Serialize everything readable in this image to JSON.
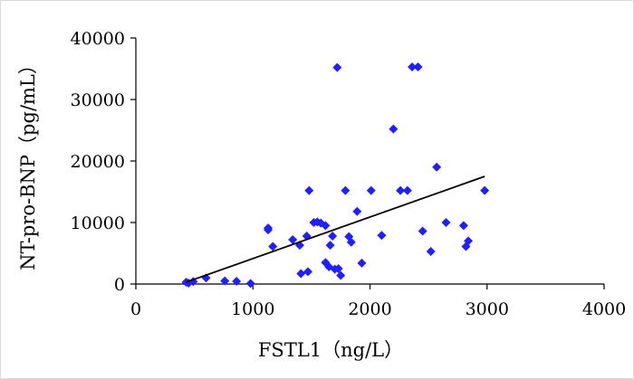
{
  "chart_data": {
    "type": "scatter",
    "title": "",
    "xlabel": "FSTL1（ng/L）",
    "ylabel": "NT-pro-BNP（pg/mL）",
    "xlim": [
      0,
      4000
    ],
    "ylim": [
      0,
      40000
    ],
    "xticks": [
      "0",
      "1000",
      "2000",
      "3000",
      "4000"
    ],
    "yticks": [
      "0",
      "10000",
      "20000",
      "30000",
      "40000"
    ],
    "grid": false,
    "legend": "none",
    "marker_color": "#1f1fff",
    "trendline_color": "#000000",
    "trendline": {
      "x": [
        430,
        2980
      ],
      "y": [
        300,
        17500
      ]
    },
    "points": [
      {
        "x": 430,
        "y": 300
      },
      {
        "x": 450,
        "y": 150
      },
      {
        "x": 490,
        "y": 400
      },
      {
        "x": 600,
        "y": 1000
      },
      {
        "x": 760,
        "y": 500
      },
      {
        "x": 860,
        "y": 450
      },
      {
        "x": 980,
        "y": 100
      },
      {
        "x": 1130,
        "y": 8800
      },
      {
        "x": 1130,
        "y": 9100
      },
      {
        "x": 1170,
        "y": 6100
      },
      {
        "x": 1340,
        "y": 7200
      },
      {
        "x": 1400,
        "y": 6300
      },
      {
        "x": 1410,
        "y": 1700
      },
      {
        "x": 1460,
        "y": 7800
      },
      {
        "x": 1470,
        "y": 2000
      },
      {
        "x": 1480,
        "y": 15200
      },
      {
        "x": 1520,
        "y": 10000
      },
      {
        "x": 1550,
        "y": 10100
      },
      {
        "x": 1580,
        "y": 9900
      },
      {
        "x": 1620,
        "y": 9500
      },
      {
        "x": 1620,
        "y": 3500
      },
      {
        "x": 1650,
        "y": 2800
      },
      {
        "x": 1660,
        "y": 6300
      },
      {
        "x": 1680,
        "y": 7800
      },
      {
        "x": 1700,
        "y": 2400
      },
      {
        "x": 1720,
        "y": 35200
      },
      {
        "x": 1730,
        "y": 2500
      },
      {
        "x": 1750,
        "y": 1400
      },
      {
        "x": 1790,
        "y": 15200
      },
      {
        "x": 1820,
        "y": 7700
      },
      {
        "x": 1840,
        "y": 6800
      },
      {
        "x": 1890,
        "y": 11800
      },
      {
        "x": 1930,
        "y": 3400
      },
      {
        "x": 2010,
        "y": 15200
      },
      {
        "x": 2100,
        "y": 7900
      },
      {
        "x": 2200,
        "y": 25200
      },
      {
        "x": 2260,
        "y": 15200
      },
      {
        "x": 2320,
        "y": 15200
      },
      {
        "x": 2360,
        "y": 35300
      },
      {
        "x": 2410,
        "y": 35300
      },
      {
        "x": 2450,
        "y": 8600
      },
      {
        "x": 2520,
        "y": 5300
      },
      {
        "x": 2570,
        "y": 19000
      },
      {
        "x": 2650,
        "y": 10000
      },
      {
        "x": 2800,
        "y": 9500
      },
      {
        "x": 2820,
        "y": 6100
      },
      {
        "x": 2840,
        "y": 7000
      },
      {
        "x": 2980,
        "y": 15200
      }
    ]
  }
}
